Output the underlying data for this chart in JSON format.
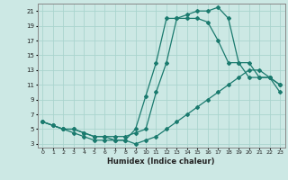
{
  "xlabel": "Humidex (Indice chaleur)",
  "bg_color": "#cce8e4",
  "grid_color": "#aad4ce",
  "line_color": "#1a7a6e",
  "xlim": [
    -0.5,
    23.5
  ],
  "ylim": [
    2.5,
    22
  ],
  "yticks": [
    3,
    5,
    7,
    9,
    11,
    13,
    15,
    17,
    19,
    21
  ],
  "xticks": [
    0,
    1,
    2,
    3,
    4,
    5,
    6,
    7,
    8,
    9,
    10,
    11,
    12,
    13,
    14,
    15,
    16,
    17,
    18,
    19,
    20,
    21,
    22,
    23
  ],
  "curve1_x": [
    0,
    1,
    2,
    3,
    4,
    5,
    6,
    7,
    8,
    9,
    10,
    11,
    12,
    13,
    14,
    15,
    16,
    17,
    18,
    19,
    20,
    21,
    22,
    23
  ],
  "curve1_y": [
    6,
    5.5,
    5,
    4.5,
    4,
    3.5,
    3.5,
    3.5,
    3.5,
    3,
    3.5,
    4,
    5,
    6,
    7,
    8,
    9,
    10,
    11,
    12,
    13,
    13,
    12,
    11
  ],
  "curve2_x": [
    0,
    1,
    2,
    3,
    4,
    5,
    6,
    7,
    8,
    9,
    10,
    11,
    12,
    13,
    14,
    15,
    16,
    17,
    18,
    19,
    20,
    21,
    22,
    23
  ],
  "curve2_y": [
    6,
    5.5,
    5,
    5,
    4.5,
    4,
    4,
    4,
    4,
    4.5,
    5,
    10,
    14,
    20,
    20,
    20,
    19.5,
    17,
    14,
    14,
    14,
    12,
    12,
    11
  ],
  "curve3_x": [
    0,
    1,
    2,
    3,
    4,
    5,
    6,
    7,
    8,
    9,
    10,
    11,
    12,
    13,
    14,
    15,
    16,
    17,
    18,
    19,
    20,
    21,
    22,
    23
  ],
  "curve3_y": [
    6,
    5.5,
    5,
    5,
    4.5,
    4,
    4,
    3.5,
    3.5,
    5,
    9.5,
    14,
    20,
    20,
    20.5,
    21,
    21,
    21.5,
    20,
    14,
    12,
    12,
    12,
    10
  ]
}
